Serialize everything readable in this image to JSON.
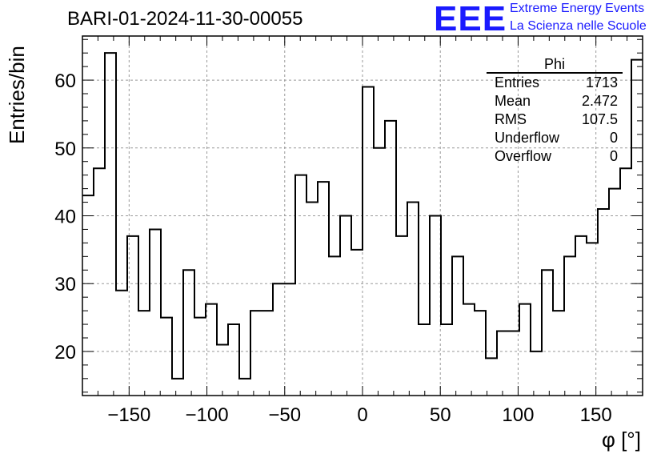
{
  "header": {
    "title": "BARI-01-2024-11-30-00055",
    "logo_text": "EEE",
    "logo_line1": "Extreme Energy Events",
    "logo_line2": "La Scienza nelle Scuole"
  },
  "stats": {
    "name": "Phi",
    "entries_label": "Entries",
    "entries": "1713",
    "mean_label": "Mean",
    "mean": "2.472",
    "rms_label": "RMS",
    "rms": "107.5",
    "underflow_label": "Underflow",
    "underflow": "0",
    "overflow_label": "Overflow",
    "overflow": "0"
  },
  "colors": {
    "logo": "#1a1aff",
    "line": "#000000",
    "grid": "#999999"
  },
  "chart_data": {
    "type": "histogram",
    "title": "BARI-01-2024-11-30-00055",
    "xlabel": "φ [°]",
    "ylabel": "Entries/bin",
    "xlim": [
      -180,
      180
    ],
    "ylim": [
      13.5,
      66.5
    ],
    "bin_width": 7.2,
    "grid": true,
    "xticks": [
      -150,
      -100,
      -50,
      0,
      50,
      100,
      150
    ],
    "xtick_labels": [
      "−150",
      "−100",
      "−50",
      "0",
      "50",
      "100",
      "150"
    ],
    "yticks": [
      20,
      30,
      40,
      50,
      60
    ],
    "ytick_labels": [
      "20",
      "30",
      "40",
      "50",
      "60"
    ],
    "values": [
      43,
      47,
      64,
      29,
      37,
      26,
      38,
      25,
      16,
      32,
      25,
      27,
      21,
      24,
      16,
      26,
      26,
      30,
      30,
      46,
      42,
      45,
      34,
      40,
      35,
      59,
      50,
      54,
      37,
      42,
      24,
      40,
      24,
      34,
      27,
      26,
      19,
      23,
      23,
      27,
      20,
      32,
      26,
      34,
      37,
      36,
      41,
      44,
      47,
      63
    ]
  }
}
